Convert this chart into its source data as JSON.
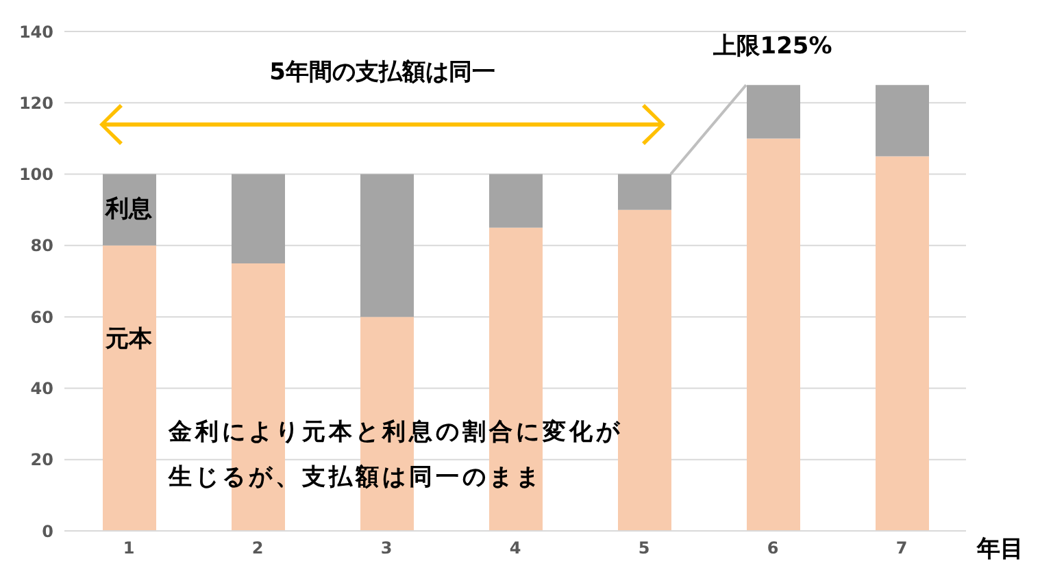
{
  "chart_data": {
    "type": "bar",
    "stacked": true,
    "categories": [
      "1",
      "2",
      "3",
      "4",
      "5",
      "6",
      "7"
    ],
    "xlabel": "年目",
    "series": [
      {
        "name": "元本",
        "color": "#f8cbad",
        "values": [
          80,
          75,
          60,
          85,
          90,
          110,
          105
        ]
      },
      {
        "name": "利息",
        "color": "#a5a5a5",
        "values": [
          20,
          25,
          40,
          15,
          10,
          15,
          20
        ]
      }
    ],
    "ylim": [
      0,
      140
    ],
    "yticks": [
      0,
      20,
      40,
      60,
      80,
      100,
      120,
      140
    ],
    "grid": "y",
    "legend": false,
    "annotations": [
      "5年間の支払額は同一",
      {
        "text": "上限125%",
        "x": "6",
        "y": 125
      },
      "金利により元本と利息の割合に変化が生じるが、支払額は同一のまま"
    ]
  }
}
